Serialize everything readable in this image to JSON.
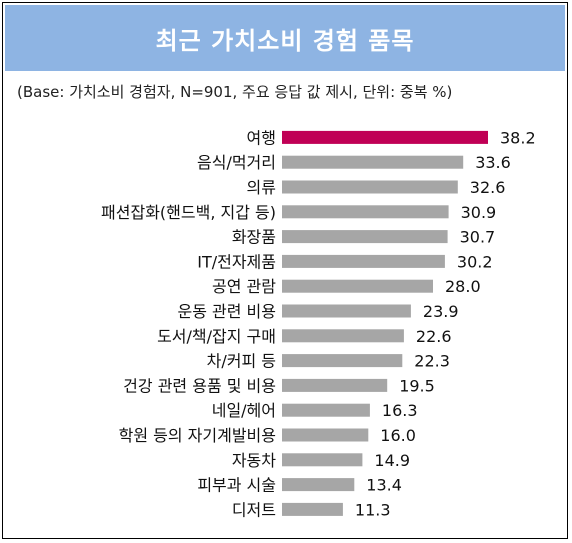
{
  "chart_data": {
    "type": "bar",
    "orientation": "horizontal",
    "title": "최근 가치소비 경험 품목",
    "subtitle": "(Base: 가치소비 경험자, N=901, 주요 응답 값 제시, 단위: 중복 %)",
    "categories": [
      "여행",
      "음식/먹거리",
      "의류",
      "패션잡화(핸드백, 지갑 등)",
      "화장품",
      "IT/전자제품",
      "공연 관람",
      "운동 관련 비용",
      "도서/책/잡지 구매",
      "차/커피 등",
      "건강 관련 용품 및 비용",
      "네일/헤어",
      "학원 등의 자기계발비용",
      "자동차",
      "피부과 시술",
      "디저트"
    ],
    "values": [
      38.2,
      33.6,
      32.6,
      30.9,
      30.7,
      30.2,
      28.0,
      23.9,
      22.6,
      22.3,
      19.5,
      16.3,
      16.0,
      14.9,
      13.4,
      11.3
    ],
    "value_labels": [
      "38.2",
      "33.6",
      "32.6",
      "30.9",
      "30.7",
      "30.2",
      "28.0",
      "23.9",
      "22.6",
      "22.3",
      "19.5",
      "16.3",
      "16.0",
      "14.9",
      "13.4",
      "11.3"
    ],
    "highlight_index": 0,
    "colors": {
      "highlight": "#c00055",
      "bar": "#a6a6a6",
      "title_bg": "#8eb4e3"
    },
    "xlim": [
      0,
      38.2
    ],
    "grid": false,
    "legend": "none"
  }
}
